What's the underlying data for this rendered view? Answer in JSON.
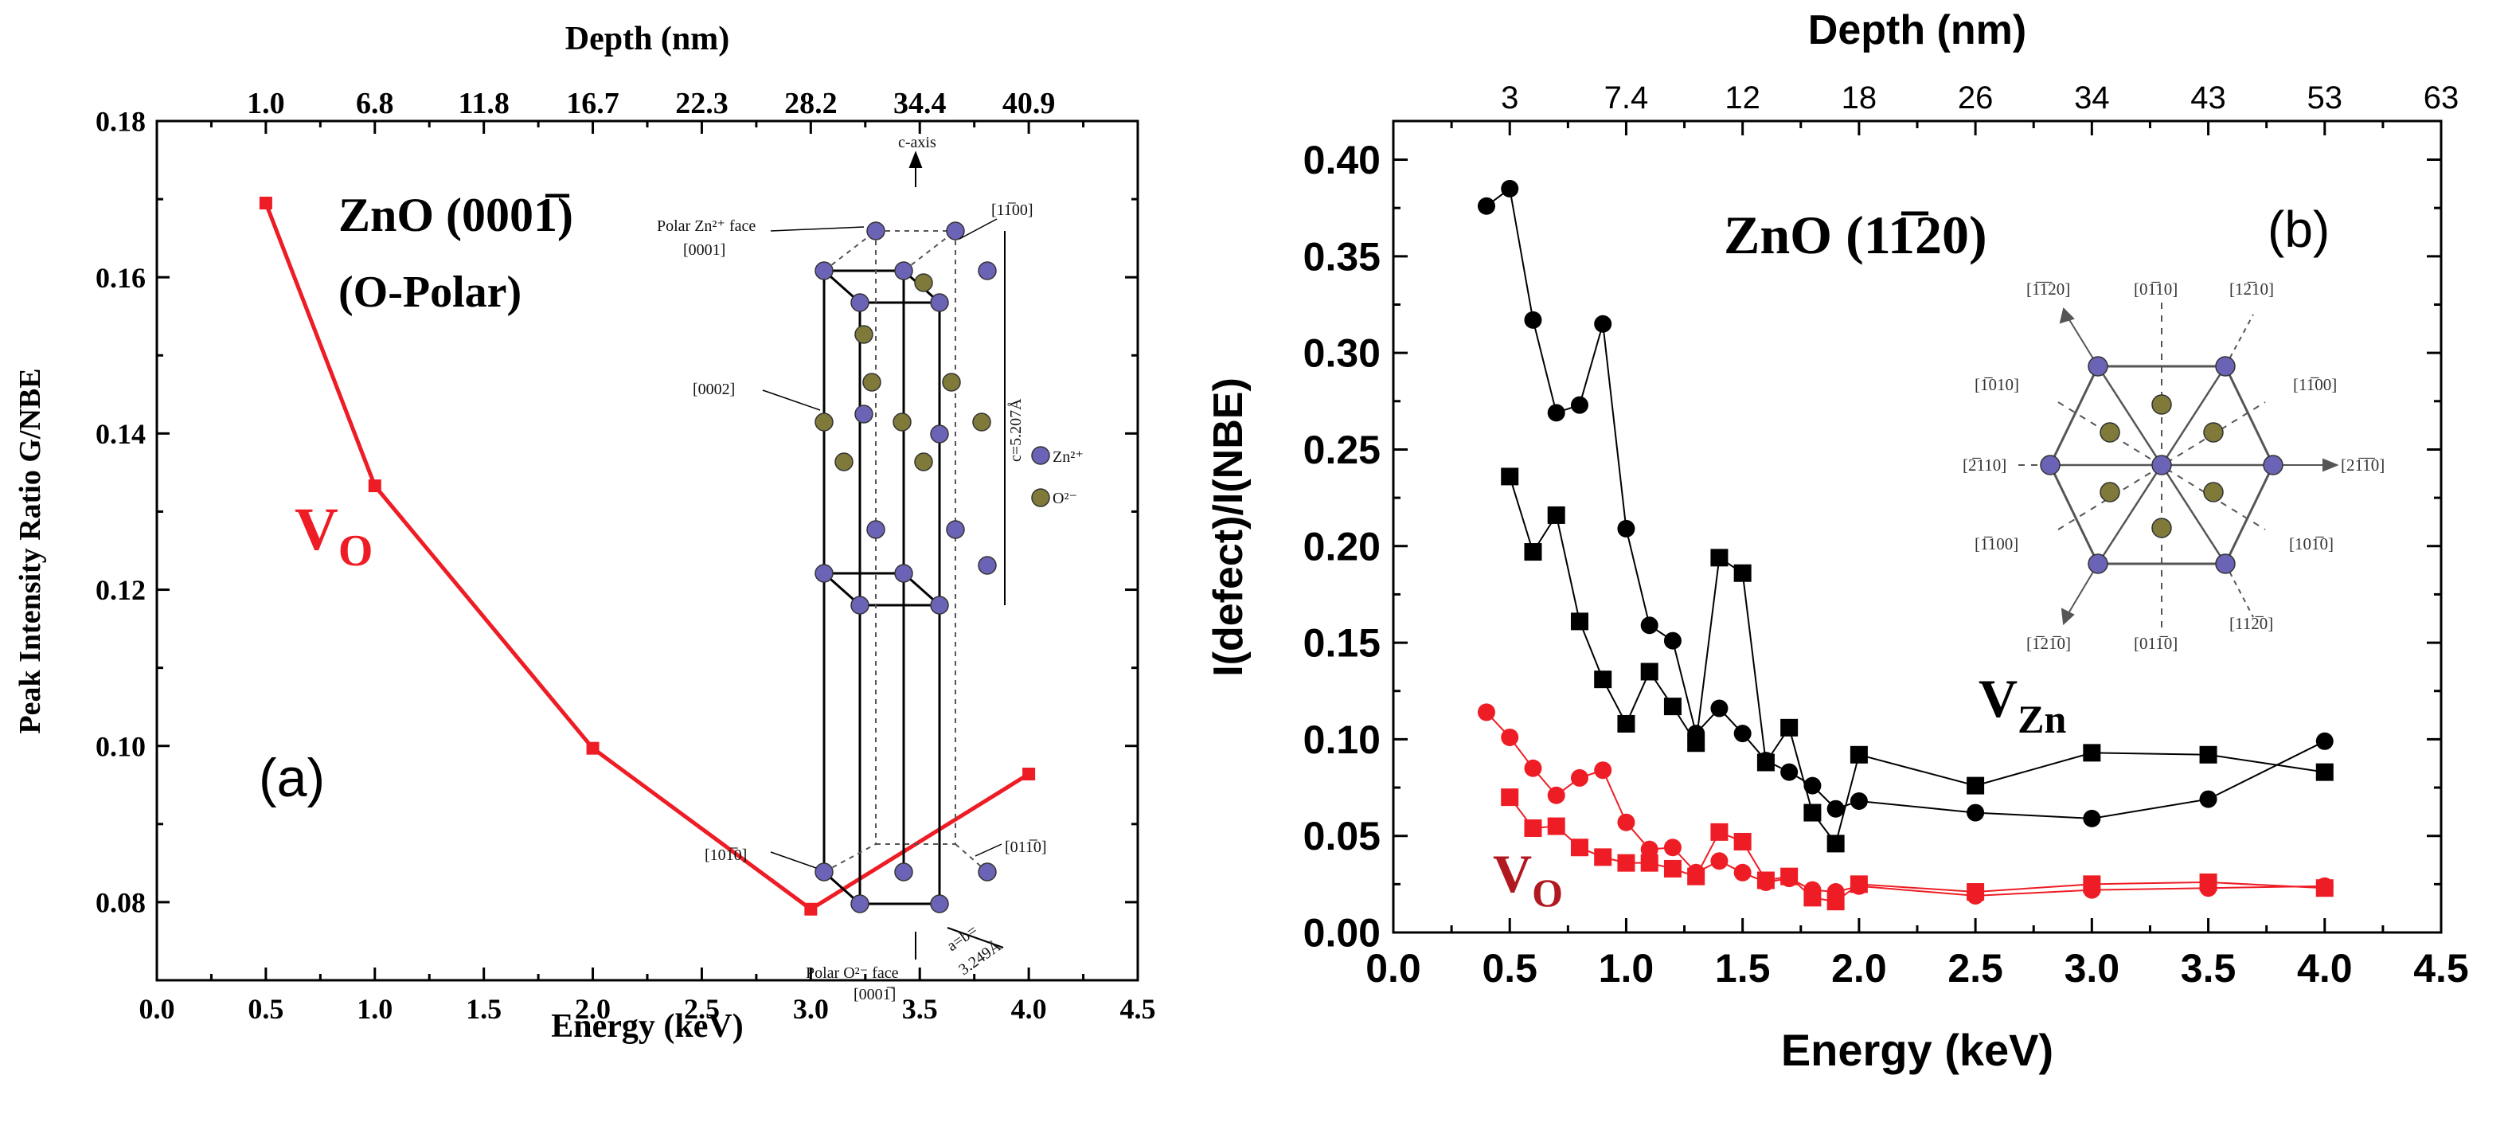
{
  "chart_data": [
    {
      "panel": "(a)",
      "type": "line",
      "title": "",
      "xlabel": "Energy (keV)",
      "ylabel": "Peak Intensity Ratio G/NBE",
      "top_axis_label": "Depth (nm)",
      "top_ticks": [
        {
          "x": 0.5,
          "label": "1.0"
        },
        {
          "x": 1.0,
          "label": "6.8"
        },
        {
          "x": 1.5,
          "label": "11.8"
        },
        {
          "x": 2.0,
          "label": "16.7"
        },
        {
          "x": 2.5,
          "label": "22.3"
        },
        {
          "x": 3.0,
          "label": "28.2"
        },
        {
          "x": 3.5,
          "label": "34.4"
        },
        {
          "x": 4.0,
          "label": "40.9"
        }
      ],
      "xlim": [
        0.0,
        4.5
      ],
      "ylim": [
        0.07,
        0.18
      ],
      "x_ticks": [
        "0.0",
        "0.5",
        "1.0",
        "1.5",
        "2.0",
        "2.5",
        "3.0",
        "3.5",
        "4.0",
        "4.5"
      ],
      "y_ticks": [
        "0.08",
        "0.10",
        "0.12",
        "0.14",
        "0.16",
        "0.18"
      ],
      "series": [
        {
          "name": "VO",
          "color": "#ee1c24",
          "marker": "square",
          "x": [
            0.5,
            1.0,
            2.0,
            3.0,
            4.0
          ],
          "y": [
            0.1695,
            0.1333,
            0.0997,
            0.0791,
            0.0964
          ]
        }
      ],
      "annotations": {
        "sample_line1": "ZnO (0001̅)",
        "sample_line2": "(O-Polar)",
        "species": "V",
        "species_sub": "O",
        "panel_label": "(a)"
      },
      "inset": {
        "c_axis": "c-axis",
        "polar_zn_face": "Polar Zn²⁺ face",
        "dir_0001": "[0001]",
        "dir_1m100": "[11̅00]",
        "dir_0002": "[0002]",
        "c_value": "c=5.207Å",
        "zn_legend": "Zn²⁺",
        "o_legend": "O²⁻",
        "dir_10m10": "[101̅0]",
        "dir_01m10": "[011̅0]",
        "ab_value": "a=b=",
        "ab_length": "3.249Å",
        "polar_o_face": "Polar O²⁻ face",
        "dir_000m1": "[0001̅]"
      }
    },
    {
      "panel": "(b)",
      "type": "line",
      "title": "",
      "xlabel": "Energy (keV)",
      "ylabel": "I(defect)/I(NBE)",
      "top_axis_label": "Depth (nm)",
      "top_ticks": [
        {
          "x": 0.5,
          "label": "3"
        },
        {
          "x": 1.0,
          "label": "7.4"
        },
        {
          "x": 1.5,
          "label": "12"
        },
        {
          "x": 2.0,
          "label": "18"
        },
        {
          "x": 2.5,
          "label": "26"
        },
        {
          "x": 3.0,
          "label": "34"
        },
        {
          "x": 3.5,
          "label": "43"
        },
        {
          "x": 4.0,
          "label": "53"
        },
        {
          "x": 4.5,
          "label": "63"
        }
      ],
      "xlim": [
        0.0,
        4.5
      ],
      "ylim": [
        0.0,
        0.42
      ],
      "x_ticks": [
        "0.0",
        "0.5",
        "1.0",
        "1.5",
        "2.0",
        "2.5",
        "3.0",
        "3.5",
        "4.0",
        "4.5"
      ],
      "y_ticks": [
        "0.00",
        "0.05",
        "0.10",
        "0.15",
        "0.20",
        "0.25",
        "0.30",
        "0.35",
        "0.40"
      ],
      "series": [
        {
          "name": "VZn circles",
          "color": "#000000",
          "marker": "circle",
          "x": [
            0.4,
            0.5,
            0.6,
            0.7,
            0.8,
            0.9,
            1.0,
            1.1,
            1.2,
            1.3,
            1.4,
            1.5,
            1.6,
            1.7,
            1.8,
            1.9,
            2.0,
            2.5,
            3.0,
            3.5,
            4.0
          ],
          "y": [
            0.376,
            0.385,
            0.317,
            0.269,
            0.273,
            0.315,
            0.209,
            0.159,
            0.151,
            0.103,
            0.116,
            0.103,
            0.089,
            0.083,
            0.076,
            0.064,
            0.068,
            0.062,
            0.059,
            0.069,
            0.099
          ]
        },
        {
          "name": "VZn squares",
          "color": "#000000",
          "marker": "square",
          "x": [
            0.5,
            0.6,
            0.7,
            0.8,
            0.9,
            1.0,
            1.1,
            1.2,
            1.3,
            1.4,
            1.5,
            1.6,
            1.7,
            1.8,
            1.9,
            2.0,
            2.5,
            3.0,
            3.5,
            4.0
          ],
          "y": [
            0.236,
            0.197,
            0.216,
            0.161,
            0.131,
            0.108,
            0.135,
            0.117,
            0.098,
            0.194,
            0.186,
            0.088,
            0.106,
            0.062,
            0.046,
            0.092,
            0.076,
            0.093,
            0.092,
            0.083
          ]
        },
        {
          "name": "VO circles",
          "color": "#ee1c24",
          "marker": "circle",
          "x": [
            0.4,
            0.5,
            0.6,
            0.7,
            0.8,
            0.9,
            1.0,
            1.1,
            1.2,
            1.3,
            1.4,
            1.5,
            1.6,
            1.7,
            1.8,
            1.9,
            2.0,
            2.5,
            3.0,
            3.5,
            4.0
          ],
          "y": [
            0.114,
            0.101,
            0.085,
            0.071,
            0.08,
            0.084,
            0.057,
            0.043,
            0.044,
            0.031,
            0.037,
            0.031,
            0.026,
            0.028,
            0.022,
            0.021,
            0.024,
            0.019,
            0.022,
            0.023,
            0.024
          ]
        },
        {
          "name": "VO squares",
          "color": "#ee1c24",
          "marker": "square",
          "x": [
            0.5,
            0.6,
            0.7,
            0.8,
            0.9,
            1.0,
            1.1,
            1.2,
            1.3,
            1.4,
            1.5,
            1.6,
            1.7,
            1.8,
            1.9,
            2.0,
            2.5,
            3.0,
            3.5,
            4.0
          ],
          "y": [
            0.07,
            0.054,
            0.055,
            0.044,
            0.039,
            0.036,
            0.036,
            0.033,
            0.029,
            0.052,
            0.047,
            0.027,
            0.029,
            0.018,
            0.016,
            0.025,
            0.021,
            0.025,
            0.026,
            0.023
          ]
        }
      ],
      "annotations": {
        "sample_text": "ZnO (11̅20)",
        "panel_label": "(b)",
        "species_zn": "V",
        "species_zn_sub": "Zn",
        "species_o": "V",
        "species_o_sub": "O"
      },
      "inset": {
        "d_1m120": "[1̅1̅20]",
        "d_0m110": "[01̅10]",
        "d_1m210": "[12̅10]",
        "d_m1010": "[1̅010]",
        "d_1m100": "[11̅00]",
        "d_m2110": "[2̅110]",
        "d_2m1m10": "[21̅1̅0]",
        "d_m1100": "[1̅100]",
        "d_10m10": "[101̅0]",
        "d_m12m10": "[1̅21̅0]",
        "d_01m10": "[011̅0]",
        "d_11m20": "[112̅0]"
      }
    }
  ],
  "colors": {
    "red": "#ee1c24",
    "black": "#000000",
    "zn_atom": "#6b63b5",
    "o_atom": "#7f7a3a"
  }
}
